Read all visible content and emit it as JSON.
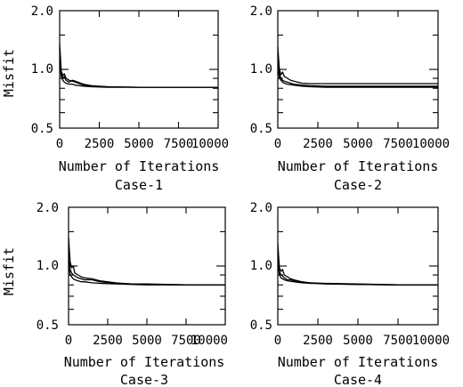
{
  "chart_data": [
    {
      "type": "line",
      "caption": "Case-1",
      "xlabel": "Number of Iterations",
      "ylabel": "Misfit",
      "xlim": [
        0,
        10000
      ],
      "ylim": [
        0.5,
        2.0
      ],
      "yscale": "log",
      "xticks": [
        "0",
        "2500",
        "5000",
        "7500",
        "10000"
      ],
      "yticks": [
        "0.5",
        "1.0",
        "2.0"
      ],
      "series": [
        {
          "x": [
            0,
            100,
            200,
            300,
            400,
            600,
            800,
            1000,
            1500,
            2000,
            3000,
            5000,
            7500,
            10000
          ],
          "y": [
            1.35,
            0.98,
            0.93,
            0.95,
            0.9,
            0.88,
            0.87,
            0.86,
            0.83,
            0.82,
            0.815,
            0.81,
            0.81,
            0.81
          ]
        },
        {
          "x": [
            0,
            100,
            200,
            300,
            400,
            600,
            800,
            1000,
            1500,
            2000,
            3000,
            5000,
            7500,
            10000
          ],
          "y": [
            1.25,
            0.95,
            0.9,
            0.92,
            0.88,
            0.86,
            0.88,
            0.87,
            0.84,
            0.825,
            0.815,
            0.81,
            0.81,
            0.81
          ]
        },
        {
          "x": [
            0,
            100,
            200,
            300,
            400,
            600,
            800,
            1000,
            1500,
            2000,
            3000,
            5000,
            7500,
            10000
          ],
          "y": [
            1.1,
            0.92,
            0.88,
            0.86,
            0.85,
            0.84,
            0.84,
            0.83,
            0.82,
            0.815,
            0.81,
            0.81,
            0.81,
            0.81
          ]
        }
      ]
    },
    {
      "type": "line",
      "caption": "Case-2",
      "xlabel": "Number of Iterations",
      "ylabel": "",
      "xlim": [
        0,
        10000
      ],
      "ylim": [
        0.5,
        2.0
      ],
      "yscale": "log",
      "xticks": [
        "0",
        "2500",
        "5000",
        "7500",
        "10000"
      ],
      "yticks": [
        "0.5",
        "1.0",
        "2.0"
      ],
      "series": [
        {
          "x": [
            0,
            100,
            200,
            300,
            400,
            600,
            800,
            1000,
            1500,
            2000,
            3000,
            5000,
            7500,
            10000
          ],
          "y": [
            1.3,
            1.0,
            0.94,
            0.97,
            0.92,
            0.9,
            0.88,
            0.87,
            0.85,
            0.845,
            0.845,
            0.845,
            0.845,
            0.845
          ]
        },
        {
          "x": [
            0,
            100,
            200,
            300,
            400,
            600,
            800,
            1000,
            1500,
            2000,
            3000,
            5000,
            7500,
            10000
          ],
          "y": [
            1.2,
            0.95,
            0.9,
            0.88,
            0.87,
            0.86,
            0.85,
            0.84,
            0.83,
            0.825,
            0.82,
            0.82,
            0.82,
            0.82
          ]
        },
        {
          "x": [
            0,
            100,
            200,
            300,
            400,
            600,
            800,
            1000,
            1500,
            2000,
            3000,
            5000,
            7500,
            10000
          ],
          "y": [
            1.05,
            0.9,
            0.88,
            0.86,
            0.85,
            0.84,
            0.835,
            0.83,
            0.82,
            0.815,
            0.81,
            0.81,
            0.81,
            0.81
          ]
        }
      ]
    },
    {
      "type": "line",
      "caption": "Case-3",
      "xlabel": "Number of Iterations",
      "ylabel": "Misfit",
      "xlim": [
        0,
        10000
      ],
      "ylim": [
        0.5,
        2.0
      ],
      "yscale": "log",
      "xticks": [
        "0",
        "2500",
        "5000",
        "7500",
        "10000"
      ],
      "yticks": [
        "0.5",
        "1.0",
        "2.0"
      ],
      "series": [
        {
          "x": [
            0,
            100,
            200,
            300,
            400,
            600,
            800,
            1000,
            1500,
            2000,
            3000,
            4000,
            5000,
            7500,
            10000
          ],
          "y": [
            1.4,
            1.05,
            0.98,
            1.0,
            0.92,
            0.9,
            0.88,
            0.87,
            0.86,
            0.84,
            0.82,
            0.81,
            0.81,
            0.8,
            0.8
          ]
        },
        {
          "x": [
            0,
            100,
            200,
            300,
            400,
            600,
            800,
            1000,
            1500,
            2000,
            3000,
            4000,
            5000,
            7500,
            10000
          ],
          "y": [
            1.2,
            0.96,
            0.92,
            0.9,
            0.89,
            0.87,
            0.86,
            0.85,
            0.85,
            0.83,
            0.815,
            0.81,
            0.805,
            0.8,
            0.8
          ]
        },
        {
          "x": [
            0,
            100,
            200,
            300,
            400,
            600,
            800,
            1000,
            1500,
            2000,
            3000,
            4000,
            5000,
            7500,
            10000
          ],
          "y": [
            1.05,
            0.9,
            0.88,
            0.86,
            0.85,
            0.84,
            0.83,
            0.83,
            0.82,
            0.815,
            0.81,
            0.805,
            0.8,
            0.8,
            0.8
          ]
        }
      ]
    },
    {
      "type": "line",
      "caption": "Case-4",
      "xlabel": "Number of Iterations",
      "ylabel": "",
      "xlim": [
        0,
        10000
      ],
      "ylim": [
        0.5,
        2.0
      ],
      "yscale": "log",
      "xticks": [
        "0",
        "2500",
        "5000",
        "7500",
        "10000"
      ],
      "yticks": [
        "0.5",
        "1.0",
        "2.0"
      ],
      "series": [
        {
          "x": [
            0,
            100,
            200,
            300,
            400,
            600,
            800,
            1000,
            1500,
            2000,
            3000,
            5000,
            7500,
            10000
          ],
          "y": [
            1.3,
            0.98,
            0.94,
            0.96,
            0.9,
            0.88,
            0.86,
            0.85,
            0.83,
            0.82,
            0.815,
            0.81,
            0.8,
            0.8
          ]
        },
        {
          "x": [
            0,
            100,
            200,
            300,
            400,
            600,
            800,
            1000,
            1500,
            2000,
            3000,
            5000,
            7500,
            10000
          ],
          "y": [
            1.15,
            0.94,
            0.9,
            0.89,
            0.87,
            0.85,
            0.85,
            0.84,
            0.825,
            0.82,
            0.81,
            0.805,
            0.8,
            0.8
          ]
        },
        {
          "x": [
            0,
            100,
            200,
            300,
            400,
            600,
            800,
            1000,
            1500,
            2000,
            3000,
            5000,
            7500,
            10000
          ],
          "y": [
            1.05,
            0.9,
            0.87,
            0.86,
            0.85,
            0.84,
            0.835,
            0.83,
            0.82,
            0.815,
            0.81,
            0.805,
            0.8,
            0.8
          ]
        }
      ]
    }
  ]
}
